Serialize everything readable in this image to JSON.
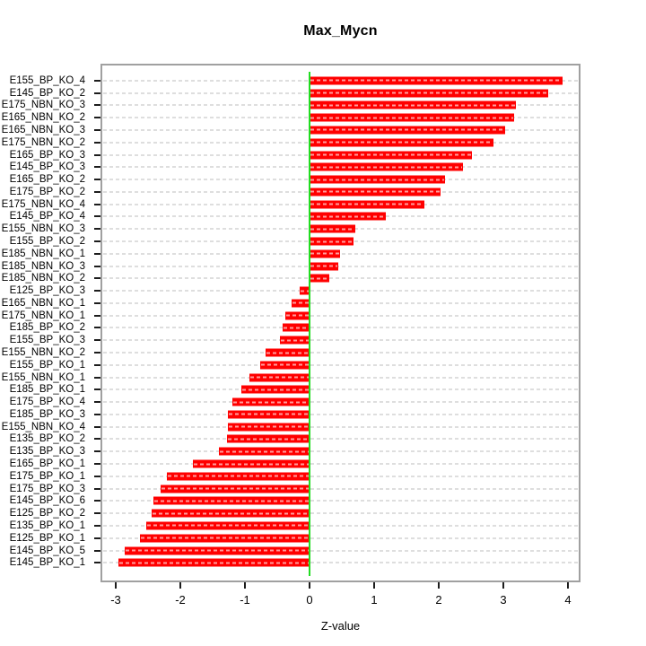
{
  "chart_data": {
    "type": "bar",
    "orientation": "horizontal",
    "title": "Max_Mycn",
    "xlabel": "Z-value",
    "ylabel": "",
    "legend": "none",
    "grid": "horizontal-dashed-per-row",
    "zero_line_x": 0,
    "x_ticks": [
      -3,
      -2,
      -1,
      0,
      1,
      2,
      3,
      4
    ],
    "xlim": [
      -3.24,
      4.19
    ],
    "colors": {
      "bar": "#ff0000",
      "bar_dash_overlay": "#ffffff",
      "zero_line": "#22dd22",
      "gridline": "#dedede",
      "plot_border": "#a0a0a0",
      "text": "#000000"
    },
    "categories": [
      "E155_BP_KO_4",
      "E145_BP_KO_2",
      "E175_NBN_KO_3",
      "E165_NBN_KO_2",
      "E165_NBN_KO_3",
      "E175_NBN_KO_2",
      "E165_BP_KO_3",
      "E145_BP_KO_3",
      "E165_BP_KO_2",
      "E175_BP_KO_2",
      "E175_NBN_KO_4",
      "E145_BP_KO_4",
      "E155_NBN_KO_3",
      "E155_BP_KO_2",
      "E185_NBN_KO_1",
      "E185_NBN_KO_3",
      "E185_NBN_KO_2",
      "E125_BP_KO_3",
      "E165_NBN_KO_1",
      "E175_NBN_KO_1",
      "E185_BP_KO_2",
      "E155_BP_KO_3",
      "E155_NBN_KO_2",
      "E155_BP_KO_1",
      "E155_NBN_KO_1",
      "E185_BP_KO_1",
      "E175_BP_KO_4",
      "E185_BP_KO_3",
      "E155_NBN_KO_4",
      "E135_BP_KO_2",
      "E135_BP_KO_3",
      "E165_BP_KO_1",
      "E175_BP_KO_1",
      "E175_BP_KO_3",
      "E145_BP_KO_6",
      "E125_BP_KO_2",
      "E135_BP_KO_1",
      "E125_BP_KO_1",
      "E145_BP_KO_5",
      "E145_BP_KO_1"
    ],
    "values": [
      3.92,
      3.7,
      3.19,
      3.16,
      3.03,
      2.85,
      2.52,
      2.37,
      2.1,
      2.03,
      1.78,
      1.18,
      0.71,
      0.68,
      0.47,
      0.45,
      0.31,
      -0.15,
      -0.28,
      -0.38,
      -0.41,
      -0.46,
      -0.68,
      -0.77,
      -0.93,
      -1.05,
      -1.19,
      -1.26,
      -1.27,
      -1.28,
      -1.4,
      -1.81,
      -2.21,
      -2.31,
      -2.41,
      -2.44,
      -2.53,
      -2.63,
      -2.86,
      -2.96
    ]
  }
}
